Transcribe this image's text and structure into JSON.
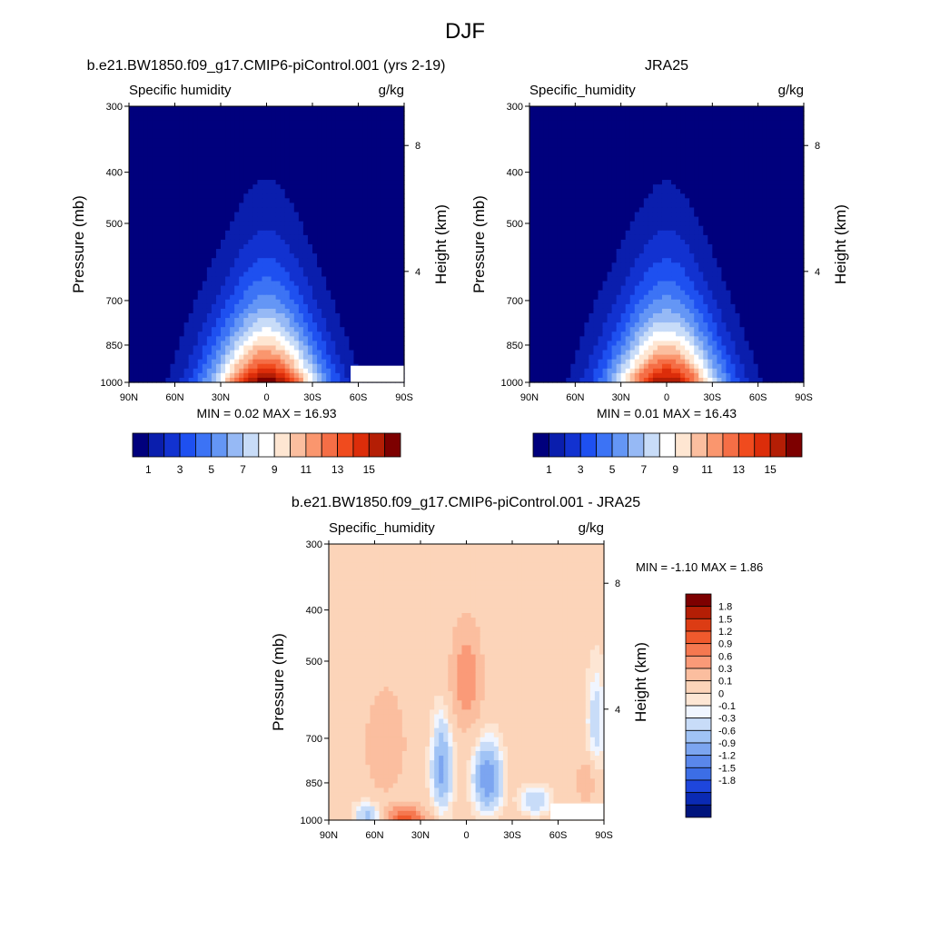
{
  "figure": {
    "title": "DJF"
  },
  "chart_data": [
    {
      "id": "model",
      "type": "heatmap",
      "title": "b.e21.BW1850.f09_g17.CMIP6-piControl.001 (yrs 2-19)",
      "variable": "Specific humidity",
      "units": "g/kg",
      "ylabel": "Pressure (mb)",
      "ylabel_right": "Height (km)",
      "x_ticks": [
        "90N",
        "60N",
        "30N",
        "0",
        "30S",
        "60S",
        "90S"
      ],
      "x_tick_values": [
        90,
        60,
        30,
        0,
        -30,
        -60,
        -90
      ],
      "y_ticks": [
        "300",
        "400",
        "500",
        "700",
        "850",
        "1000"
      ],
      "y_tick_values": [
        300,
        400,
        500,
        700,
        850,
        1000
      ],
      "height_ticks": [
        "8",
        "4"
      ],
      "height_tick_values": [
        8,
        4
      ],
      "xlim": [
        90,
        -90
      ],
      "ylim": [
        1000,
        300
      ],
      "y_scale": "log",
      "stats": "MIN =   0.02  MAX =  16.93",
      "min": 0.02,
      "max": 16.93,
      "peak_lat": 0,
      "surface_value": 16.93,
      "colorbar_labels": [
        "1",
        "3",
        "5",
        "7",
        "9",
        "11",
        "13",
        "15"
      ],
      "colorbar_label_values": [
        1,
        3,
        5,
        7,
        9,
        11,
        13,
        15
      ],
      "contour_levels": [
        1,
        2,
        3,
        4,
        5,
        6,
        7,
        8,
        9,
        10,
        11,
        12,
        13,
        14,
        15,
        16
      ],
      "missing_region": "Antarctic near-surface (~50S-90S below ~900 mb)"
    },
    {
      "id": "obs",
      "type": "heatmap",
      "title": "JRA25",
      "variable": "Specific_humidity",
      "units": "g/kg",
      "ylabel": "Pressure (mb)",
      "ylabel_right": "Height (km)",
      "x_ticks": [
        "90N",
        "60N",
        "30N",
        "0",
        "30S",
        "60S",
        "90S"
      ],
      "x_tick_values": [
        90,
        60,
        30,
        0,
        -30,
        -60,
        -90
      ],
      "y_ticks": [
        "300",
        "400",
        "500",
        "700",
        "850",
        "1000"
      ],
      "y_tick_values": [
        300,
        400,
        500,
        700,
        850,
        1000
      ],
      "height_ticks": [
        "8",
        "4"
      ],
      "height_tick_values": [
        8,
        4
      ],
      "xlim": [
        90,
        -90
      ],
      "ylim": [
        1000,
        300
      ],
      "y_scale": "log",
      "stats": "MIN =   0.01  MAX =  16.43",
      "min": 0.01,
      "max": 16.43,
      "peak_lat": 0,
      "surface_value": 16.43,
      "colorbar_labels": [
        "1",
        "3",
        "5",
        "7",
        "9",
        "11",
        "13",
        "15"
      ],
      "colorbar_label_values": [
        1,
        3,
        5,
        7,
        9,
        11,
        13,
        15
      ],
      "contour_levels": [
        1,
        2,
        3,
        4,
        5,
        6,
        7,
        8,
        9,
        10,
        11,
        12,
        13,
        14,
        15,
        16
      ]
    },
    {
      "id": "diff",
      "type": "heatmap",
      "title": "b.e21.BW1850.f09_g17.CMIP6-piControl.001 - JRA25",
      "variable": "Specific_humidity",
      "units": "g/kg",
      "ylabel": "Pressure (mb)",
      "ylabel_right": "Height (km)",
      "x_ticks": [
        "90N",
        "60N",
        "30N",
        "0",
        "30S",
        "60S",
        "90S"
      ],
      "x_tick_values": [
        90,
        60,
        30,
        0,
        -30,
        -60,
        -90
      ],
      "y_ticks": [
        "300",
        "400",
        "500",
        "700",
        "850",
        "1000"
      ],
      "y_tick_values": [
        300,
        400,
        500,
        700,
        850,
        1000
      ],
      "height_ticks": [
        "8",
        "4"
      ],
      "height_tick_values": [
        8,
        4
      ],
      "xlim": [
        90,
        -90
      ],
      "ylim": [
        1000,
        300
      ],
      "y_scale": "log",
      "stats": "MIN =  -1.10  MAX =   1.86",
      "min": -1.1,
      "max": 1.86,
      "colorbar_labels": [
        "1.8",
        "1.5",
        "1.2",
        "0.9",
        "0.6",
        "0.3",
        "0.1",
        "0",
        "-0.1",
        "-0.3",
        "-0.6",
        "-0.9",
        "-1.2",
        "-1.5",
        "-1.8"
      ],
      "contour_levels": [
        -1.8,
        -1.5,
        -1.2,
        -0.9,
        -0.6,
        -0.3,
        -0.1,
        0,
        0.1,
        0.3,
        0.6,
        0.9,
        1.2,
        1.5,
        1.8
      ],
      "missing_region": "Antarctic near-surface (~50S-90S below ~900 mb)"
    }
  ],
  "colors": {
    "sequential": [
      "#00007d",
      "#0a1ead",
      "#1232d0",
      "#1e50f0",
      "#3c73f5",
      "#6496f5",
      "#96b9f5",
      "#c8dcf8",
      "#ffffff",
      "#fee6d2",
      "#fbbe9f",
      "#fa966e",
      "#f56e46",
      "#f04b1e",
      "#dc2d0a",
      "#b41e05",
      "#7d0000"
    ],
    "diverging_negative": [
      "#f0f5ff",
      "#c8dcf8",
      "#a0c3f5",
      "#7ca5f0",
      "#5a87eb",
      "#3c6ee6",
      "#1e46dc",
      "#0a2ab4",
      "#00147d"
    ],
    "diverging_positive": [
      "#fde6d4",
      "#fcd4b9",
      "#fbbe9f",
      "#fa9a78",
      "#f57850",
      "#f05a2d",
      "#dc3c14",
      "#b41e05",
      "#7d0000"
    ]
  }
}
